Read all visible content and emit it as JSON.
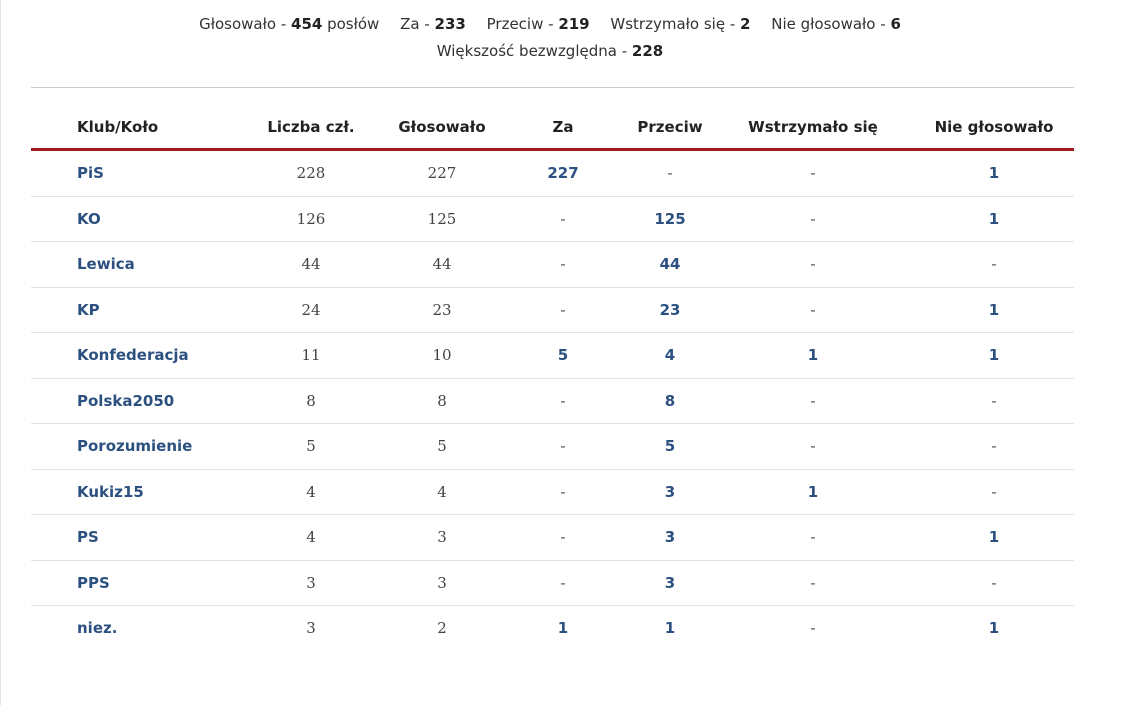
{
  "summary": {
    "voted_label": "Głosowało - ",
    "voted_value": "454",
    "voted_suffix": " posłów",
    "za_label": "Za - ",
    "za_value": "233",
    "przeciw_label": "Przeciw - ",
    "przeciw_value": "219",
    "wstrzymalo_label": "Wstrzymało się - ",
    "wstrzymalo_value": "2",
    "nie_glosowalo_label": "Nie głosowało - ",
    "nie_glosowalo_value": "6",
    "majority_label": "Większość bezwzględna - ",
    "majority_value": "228"
  },
  "table": {
    "headers": [
      "Klub/Koło",
      "Liczba czł.",
      "Głosowało",
      "Za",
      "Przeciw",
      "Wstrzymało się",
      "Nie głosowało"
    ],
    "rows": [
      {
        "club": "PiS",
        "members": "228",
        "voted": "227",
        "za": "227",
        "przeciw": "-",
        "wstrzymalo": "-",
        "nie_glosowalo": "1"
      },
      {
        "club": "KO",
        "members": "126",
        "voted": "125",
        "za": "-",
        "przeciw": "125",
        "wstrzymalo": "-",
        "nie_glosowalo": "1"
      },
      {
        "club": "Lewica",
        "members": "44",
        "voted": "44",
        "za": "-",
        "przeciw": "44",
        "wstrzymalo": "-",
        "nie_glosowalo": "-"
      },
      {
        "club": "KP",
        "members": "24",
        "voted": "23",
        "za": "-",
        "przeciw": "23",
        "wstrzymalo": "-",
        "nie_glosowalo": "1"
      },
      {
        "club": "Konfederacja",
        "members": "11",
        "voted": "10",
        "za": "5",
        "przeciw": "4",
        "wstrzymalo": "1",
        "nie_glosowalo": "1"
      },
      {
        "club": "Polska2050",
        "members": "8",
        "voted": "8",
        "za": "-",
        "przeciw": "8",
        "wstrzymalo": "-",
        "nie_glosowalo": "-"
      },
      {
        "club": "Porozumienie",
        "members": "5",
        "voted": "5",
        "za": "-",
        "przeciw": "5",
        "wstrzymalo": "-",
        "nie_glosowalo": "-"
      },
      {
        "club": "Kukiz15",
        "members": "4",
        "voted": "4",
        "za": "-",
        "przeciw": "3",
        "wstrzymalo": "1",
        "nie_glosowalo": "-"
      },
      {
        "club": "PS",
        "members": "4",
        "voted": "3",
        "za": "-",
        "przeciw": "3",
        "wstrzymalo": "-",
        "nie_glosowalo": "1"
      },
      {
        "club": "PPS",
        "members": "3",
        "voted": "3",
        "za": "-",
        "przeciw": "3",
        "wstrzymalo": "-",
        "nie_glosowalo": "-"
      },
      {
        "club": "niez.",
        "members": "3",
        "voted": "2",
        "za": "1",
        "przeciw": "1",
        "wstrzymalo": "-",
        "nie_glosowalo": "1"
      }
    ]
  },
  "colors": {
    "link_blue": "#2c5180",
    "header_rule_red": "#9e1b1e",
    "row_divider": "#e3e3e3"
  }
}
